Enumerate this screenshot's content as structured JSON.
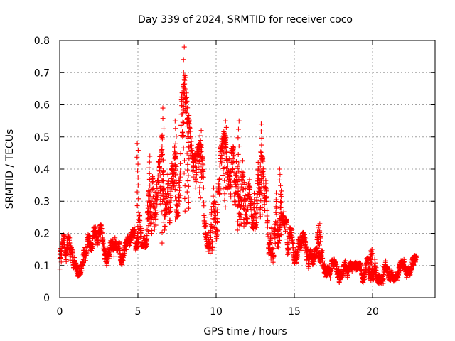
{
  "chart_data": {
    "type": "scatter",
    "title": "Day 339 of 2024, SRMTID for receiver coco",
    "xlabel": "GPS time / hours",
    "ylabel": "SRMTID / TECUs",
    "xlim": [
      0,
      24
    ],
    "ylim": [
      0,
      0.8
    ],
    "xticks": [
      0,
      5,
      10,
      15,
      20
    ],
    "xtick_labels": [
      "0",
      "5",
      "10",
      "15",
      "20"
    ],
    "yticks": [
      0,
      0.1,
      0.2,
      0.3,
      0.4,
      0.5,
      0.6,
      0.7,
      0.8
    ],
    "ytick_labels": [
      "0",
      "0.1",
      "0.2",
      "0.3",
      "0.4",
      "0.5",
      "0.6",
      "0.7",
      "0.8"
    ],
    "grid": true,
    "marker": "+",
    "color": "#ff0000",
    "envelope": {
      "x": [
        0,
        0.3,
        0.7,
        1.0,
        1.5,
        2.0,
        2.5,
        3.0,
        3.5,
        4.0,
        4.5,
        5.0,
        5.5,
        6.0,
        6.5,
        7.0,
        7.5,
        8.0,
        8.5,
        9.0,
        9.5,
        10.0,
        10.5,
        11.0,
        11.5,
        12.0,
        12.5,
        13.0,
        13.5,
        14.0,
        14.5,
        15.0,
        15.5,
        16.0,
        16.5,
        17.0,
        17.5,
        18.0,
        18.5,
        19.0,
        19.5,
        20.0,
        20.5,
        21.0,
        21.5,
        22.0,
        22.5,
        22.8
      ],
      "low": [
        0.06,
        0.12,
        0.05,
        0.06,
        0.07,
        0.12,
        0.17,
        0.09,
        0.11,
        0.1,
        0.12,
        0.15,
        0.14,
        0.18,
        0.11,
        0.16,
        0.2,
        0.22,
        0.24,
        0.26,
        0.1,
        0.13,
        0.24,
        0.2,
        0.15,
        0.2,
        0.16,
        0.22,
        0.07,
        0.13,
        0.12,
        0.1,
        0.1,
        0.08,
        0.12,
        0.06,
        0.05,
        0.04,
        0.06,
        0.05,
        0.04,
        0.05,
        0.04,
        0.05,
        0.05,
        0.06,
        0.07,
        0.07
      ],
      "high": [
        0.15,
        0.27,
        0.18,
        0.12,
        0.17,
        0.22,
        0.25,
        0.19,
        0.2,
        0.17,
        0.2,
        0.26,
        0.3,
        0.43,
        0.59,
        0.4,
        0.56,
        0.78,
        0.46,
        0.52,
        0.34,
        0.48,
        0.56,
        0.5,
        0.55,
        0.48,
        0.54,
        0.47,
        0.25,
        0.4,
        0.25,
        0.21,
        0.22,
        0.17,
        0.24,
        0.16,
        0.12,
        0.12,
        0.11,
        0.11,
        0.12,
        0.15,
        0.11,
        0.12,
        0.11,
        0.12,
        0.12,
        0.14
      ]
    },
    "peaks": [
      {
        "x": 5.0,
        "y": 0.48
      },
      {
        "x": 5.7,
        "y": 0.44
      },
      {
        "x": 6.6,
        "y": 0.59
      },
      {
        "x": 7.4,
        "y": 0.55
      },
      {
        "x": 7.98,
        "y": 0.78
      },
      {
        "x": 8.2,
        "y": 0.5
      },
      {
        "x": 9.0,
        "y": 0.52
      },
      {
        "x": 10.6,
        "y": 0.55
      },
      {
        "x": 11.4,
        "y": 0.55
      },
      {
        "x": 12.9,
        "y": 0.54
      },
      {
        "x": 14.1,
        "y": 0.4
      },
      {
        "x": 16.6,
        "y": 0.23
      },
      {
        "x": 19.9,
        "y": 0.15
      }
    ],
    "samples_per_hour": 120
  }
}
